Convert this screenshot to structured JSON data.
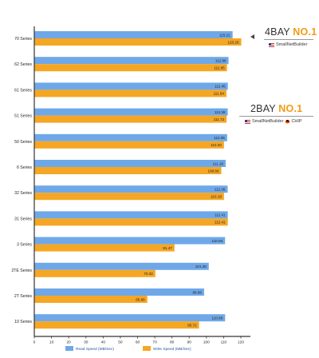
{
  "chart_data": {
    "type": "bar",
    "orientation": "horizontal",
    "categories": [
      "70 Series",
      "62 Series",
      "61 Series",
      "51 Series",
      "50 Series",
      "6 Series",
      "32 Series",
      "31 Series",
      "3 Series",
      "2TE Series",
      "2T Series",
      "10 Series"
    ],
    "series": [
      {
        "name": "Read Speed (MB/Sec)",
        "color": "#6fa8e8",
        "values": [
          115.22,
          112.86,
          112.45,
          112.38,
          112.05,
          111.18,
          112.36,
          112.41,
          110.84,
          101.36,
          98.66,
          110.86
        ]
      },
      {
        "name": "Write Speed (MB/Sec)",
        "color": "#f5a623",
        "values": [
          120.26,
          111.95,
          111.64,
          111.72,
          110.2,
          108.66,
          110.19,
          112.41,
          81.47,
          70.32,
          65.66,
          95.72
        ]
      }
    ],
    "xlim": [
      0,
      120
    ],
    "xticks": [
      "0",
      "10",
      "20",
      "30",
      "40",
      "50",
      "60",
      "70",
      "80",
      "90",
      "100",
      "110",
      "120"
    ],
    "legend_position": "bottom",
    "title": "",
    "xlabel": "",
    "ylabel": ""
  },
  "badges": {
    "four_bay": {
      "prefix": "4BAY ",
      "highlight": "NO.1",
      "sources": [
        "SmallNetBuilder"
      ]
    },
    "two_bay": {
      "prefix": "2BAY ",
      "highlight": "NO.1",
      "sources": [
        "SmallNetBuilder",
        "CHIP"
      ]
    }
  }
}
